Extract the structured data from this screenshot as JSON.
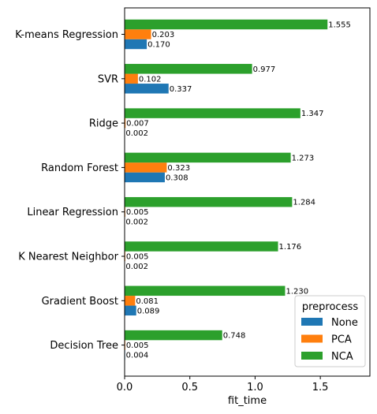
{
  "chart_data": {
    "type": "bar",
    "orientation": "horizontal",
    "categories": [
      "K-means Regression",
      "SVR",
      "Ridge",
      "Random Forest",
      "Linear Regression",
      "K Nearest Neighbor",
      "Gradient Boost",
      "Decision Tree"
    ],
    "series": [
      {
        "name": "None",
        "color": "#1f77b4",
        "values": [
          0.17,
          0.337,
          0.002,
          0.308,
          0.002,
          0.002,
          0.089,
          0.004
        ],
        "labels": [
          "0.170",
          "0.337",
          "0.002",
          "0.308",
          "0.002",
          "0.002",
          "0.089",
          "0.004"
        ]
      },
      {
        "name": "PCA",
        "color": "#ff7f0e",
        "values": [
          0.203,
          0.102,
          0.007,
          0.323,
          0.005,
          0.005,
          0.081,
          0.005
        ],
        "labels": [
          "0.203",
          "0.102",
          "0.007",
          "0.323",
          "0.005",
          "0.005",
          "0.081",
          "0.005"
        ]
      },
      {
        "name": "NCA",
        "color": "#2ca02c",
        "values": [
          1.555,
          0.977,
          1.347,
          1.273,
          1.284,
          1.176,
          1.23,
          0.748
        ],
        "labels": [
          "1.555",
          "0.977",
          "1.347",
          "1.273",
          "1.284",
          "1.176",
          "1.230",
          "0.748"
        ]
      }
    ],
    "xlabel": "fit_time",
    "xlim": [
      0,
      1.88
    ],
    "xticks": [
      0.0,
      0.5,
      1.0,
      1.5
    ],
    "xtick_labels": [
      "0.0",
      "0.5",
      "1.0",
      "1.5"
    ],
    "grid": false,
    "legend": {
      "title": "preprocess",
      "placement": "lower right"
    }
  }
}
